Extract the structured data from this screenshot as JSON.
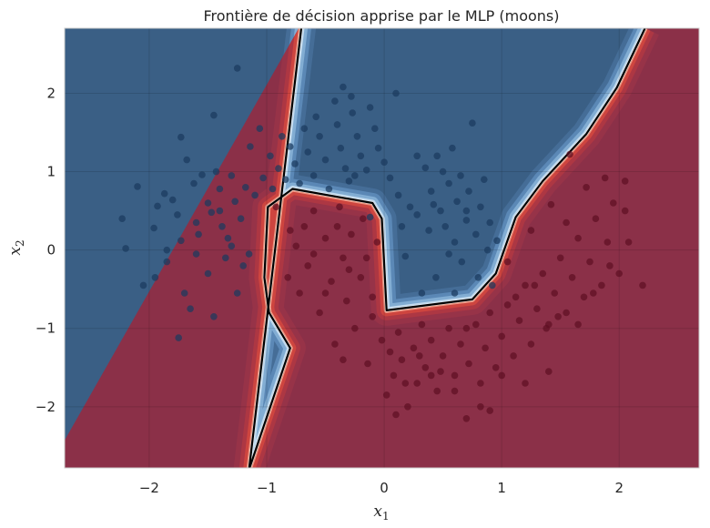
{
  "chart_data": {
    "type": "scatter",
    "title": "Frontière de décision apprise par le MLP (moons)",
    "xlabel": {
      "var": "x",
      "sub": "1"
    },
    "ylabel": {
      "var": "x",
      "sub": "2"
    },
    "xlim": [
      -2.72,
      2.68
    ],
    "ylim": [
      -2.78,
      2.83
    ],
    "xticks": [
      -2,
      -1,
      0,
      1,
      2
    ],
    "yticks": [
      -2,
      -1,
      0,
      1,
      2
    ],
    "grid": true,
    "colors": {
      "class0_region": "#3a5f85",
      "class1_region": "#8b3048",
      "class0_point": "#1b3a5e",
      "class1_point": "#5e0f22",
      "boundary": "#000000",
      "edge_blue": "#5aa1d6",
      "edge_red": "#cf3b3b"
    },
    "decision_boundary": [
      [
        -0.7,
        2.9
      ],
      [
        -1.15,
        -2.8
      ],
      [
        -0.8,
        -1.25
      ],
      [
        -0.98,
        -0.8
      ],
      [
        -1.02,
        -0.35
      ],
      [
        -0.99,
        0.55
      ],
      [
        -0.78,
        0.78
      ],
      [
        -0.1,
        0.6
      ],
      [
        -0.02,
        0.4
      ],
      [
        0.02,
        -0.77
      ],
      [
        0.75,
        -0.63
      ],
      [
        0.95,
        -0.3
      ],
      [
        1.12,
        0.42
      ],
      [
        1.35,
        0.88
      ],
      [
        1.72,
        1.48
      ],
      [
        1.98,
        2.07
      ],
      [
        2.22,
        2.83
      ]
    ],
    "series": [
      {
        "class": 0,
        "points": [
          [
            -2.1,
            0.81
          ],
          [
            -2.23,
            0.4
          ],
          [
            -1.96,
            0.28
          ],
          [
            -1.93,
            0.56
          ],
          [
            -1.87,
            0.72
          ],
          [
            -1.8,
            0.64
          ],
          [
            -1.76,
            0.45
          ],
          [
            -1.73,
            1.44
          ],
          [
            -1.73,
            0.12
          ],
          [
            -1.68,
            1.15
          ],
          [
            -1.62,
            0.85
          ],
          [
            -1.6,
            0.35
          ],
          [
            -1.58,
            0.2
          ],
          [
            -1.55,
            0.96
          ],
          [
            -1.5,
            0.6
          ],
          [
            -1.47,
            0.48
          ],
          [
            -1.43,
            1.0
          ],
          [
            -1.4,
            0.78
          ],
          [
            -1.38,
            0.3
          ],
          [
            -1.33,
            0.15
          ],
          [
            -1.3,
            0.95
          ],
          [
            -1.27,
            0.62
          ],
          [
            -1.22,
            0.4
          ],
          [
            -1.18,
            0.8
          ],
          [
            -1.14,
            1.32
          ],
          [
            -1.1,
            0.7
          ],
          [
            -1.06,
            1.55
          ],
          [
            -1.03,
            0.92
          ],
          [
            -0.97,
            1.2
          ],
          [
            -0.95,
            0.78
          ],
          [
            -0.9,
            1.04
          ],
          [
            -0.87,
            1.45
          ],
          [
            -0.84,
            0.9
          ],
          [
            -0.8,
            1.32
          ],
          [
            -0.76,
            1.1
          ],
          [
            -0.72,
            0.85
          ],
          [
            -0.68,
            1.55
          ],
          [
            -0.65,
            1.25
          ],
          [
            -0.6,
            0.95
          ],
          [
            -0.58,
            1.7
          ],
          [
            -0.55,
            1.45
          ],
          [
            -0.5,
            1.15
          ],
          [
            -0.47,
            0.78
          ],
          [
            -0.42,
            1.9
          ],
          [
            -0.4,
            1.6
          ],
          [
            -0.37,
            1.3
          ],
          [
            -0.33,
            1.04
          ],
          [
            -0.3,
            0.88
          ],
          [
            -0.27,
            1.75
          ],
          [
            -0.23,
            1.45
          ],
          [
            -0.2,
            1.2
          ],
          [
            -0.15,
            1.02
          ],
          [
            -0.12,
            1.82
          ],
          [
            -0.08,
            1.55
          ],
          [
            -0.05,
            1.3
          ],
          [
            0.0,
            1.12
          ],
          [
            0.05,
            0.92
          ],
          [
            0.1,
            2.0
          ],
          [
            0.12,
            0.7
          ],
          [
            -2.2,
            0.02
          ],
          [
            -1.95,
            -0.35
          ],
          [
            -1.85,
            -0.15
          ],
          [
            -1.7,
            -0.55
          ],
          [
            -1.45,
            -0.85
          ],
          [
            -1.25,
            -0.55
          ],
          [
            -1.2,
            -0.2
          ],
          [
            -1.3,
            0.05
          ],
          [
            -1.75,
            -1.12
          ],
          [
            -1.5,
            -0.3
          ],
          [
            -1.6,
            -0.05
          ],
          [
            -1.35,
            -0.1
          ],
          [
            -1.85,
            0.0
          ],
          [
            -2.05,
            -0.45
          ],
          [
            -1.65,
            -0.75
          ],
          [
            -1.4,
            0.5
          ],
          [
            -1.15,
            -0.05
          ],
          [
            -1.25,
            2.32
          ],
          [
            -0.35,
            2.08
          ],
          [
            -0.28,
            1.96
          ],
          [
            -1.45,
            1.72
          ],
          [
            -0.25,
            0.95
          ],
          [
            0.35,
            1.05
          ],
          [
            0.4,
            0.75
          ],
          [
            0.45,
            1.2
          ],
          [
            0.48,
            0.5
          ],
          [
            0.52,
            0.3
          ],
          [
            0.55,
            0.85
          ],
          [
            0.6,
            0.1
          ],
          [
            0.62,
            0.62
          ],
          [
            0.66,
            -0.15
          ],
          [
            0.7,
            0.38
          ],
          [
            0.72,
            0.75
          ],
          [
            0.78,
            0.2
          ],
          [
            0.8,
            -0.35
          ],
          [
            0.82,
            0.55
          ],
          [
            0.88,
            0.0
          ],
          [
            0.9,
            0.35
          ],
          [
            0.92,
            -0.45
          ],
          [
            0.96,
            0.12
          ],
          [
            0.75,
            1.62
          ],
          [
            0.58,
            1.3
          ],
          [
            0.44,
            -0.35
          ],
          [
            0.38,
            0.25
          ],
          [
            0.32,
            -0.55
          ],
          [
            0.28,
            0.45
          ],
          [
            0.22,
            0.55
          ],
          [
            0.18,
            -0.08
          ],
          [
            0.15,
            0.3
          ],
          [
            -0.12,
            0.42
          ],
          [
            0.55,
            -0.05
          ],
          [
            0.65,
            0.95
          ],
          [
            0.42,
            0.58
          ],
          [
            0.6,
            -0.55
          ],
          [
            0.85,
            0.9
          ],
          [
            0.28,
            1.2
          ],
          [
            0.5,
            1.0
          ],
          [
            0.7,
            0.5
          ]
        ]
      },
      {
        "class": 1,
        "points": [
          [
            -0.92,
            0.55
          ],
          [
            -0.75,
            0.05
          ],
          [
            -0.72,
            -0.55
          ],
          [
            -0.68,
            0.3
          ],
          [
            -0.65,
            -0.2
          ],
          [
            -0.6,
            0.5
          ],
          [
            -0.55,
            -0.8
          ],
          [
            -0.5,
            0.15
          ],
          [
            -0.45,
            -0.4
          ],
          [
            -0.42,
            -1.2
          ],
          [
            -0.38,
            0.55
          ],
          [
            -0.35,
            -0.1
          ],
          [
            -0.32,
            -0.65
          ],
          [
            -0.28,
            0.2
          ],
          [
            -0.25,
            -1.0
          ],
          [
            -0.2,
            -0.35
          ],
          [
            -0.18,
            0.4
          ],
          [
            -0.14,
            -1.45
          ],
          [
            -0.1,
            -0.6
          ],
          [
            -0.06,
            0.1
          ],
          [
            -0.02,
            -1.15
          ],
          [
            0.02,
            -1.85
          ],
          [
            0.05,
            -1.3
          ],
          [
            0.08,
            -1.6
          ],
          [
            0.12,
            -1.05
          ],
          [
            0.15,
            -1.4
          ],
          [
            0.2,
            -2.0
          ],
          [
            0.25,
            -1.25
          ],
          [
            0.28,
            -1.7
          ],
          [
            0.32,
            -0.95
          ],
          [
            0.35,
            -1.5
          ],
          [
            0.4,
            -1.15
          ],
          [
            0.45,
            -1.8
          ],
          [
            0.5,
            -1.35
          ],
          [
            0.55,
            -1.0
          ],
          [
            0.6,
            -1.6
          ],
          [
            0.65,
            -1.2
          ],
          [
            0.7,
            -2.15
          ],
          [
            0.72,
            -1.45
          ],
          [
            0.78,
            -0.95
          ],
          [
            0.82,
            -1.7
          ],
          [
            0.86,
            -1.25
          ],
          [
            0.9,
            -0.8
          ],
          [
            0.95,
            -1.5
          ],
          [
            1.0,
            -1.1
          ],
          [
            1.05,
            -0.7
          ],
          [
            1.1,
            -1.35
          ],
          [
            1.15,
            -0.9
          ],
          [
            1.2,
            -0.45
          ],
          [
            1.25,
            -1.2
          ],
          [
            1.3,
            -0.75
          ],
          [
            1.35,
            -0.3
          ],
          [
            1.4,
            -0.95
          ],
          [
            1.45,
            -0.55
          ],
          [
            1.5,
            -0.1
          ],
          [
            1.55,
            -0.8
          ],
          [
            1.6,
            -0.35
          ],
          [
            1.65,
            0.15
          ],
          [
            1.7,
            -0.6
          ],
          [
            1.75,
            -0.15
          ],
          [
            1.8,
            0.4
          ],
          [
            1.85,
            -0.45
          ],
          [
            1.9,
            0.1
          ],
          [
            1.95,
            0.6
          ],
          [
            2.0,
            -0.3
          ],
          [
            2.05,
            0.5
          ],
          [
            2.2,
            -0.45
          ],
          [
            1.58,
            1.22
          ],
          [
            1.88,
            0.92
          ],
          [
            2.05,
            0.88
          ],
          [
            1.42,
            0.58
          ],
          [
            1.25,
            0.25
          ],
          [
            1.05,
            -0.15
          ],
          [
            1.72,
            0.8
          ],
          [
            1.55,
            0.35
          ],
          [
            -0.6,
            -0.05
          ],
          [
            -0.8,
            0.25
          ],
          [
            -0.82,
            -0.35
          ],
          [
            -0.3,
            -0.25
          ],
          [
            -0.15,
            -0.1
          ],
          [
            -0.4,
            0.3
          ],
          [
            -0.5,
            -0.55
          ],
          [
            -0.35,
            -1.4
          ],
          [
            0.6,
            -1.8
          ],
          [
            0.48,
            -1.55
          ],
          [
            0.3,
            -1.35
          ],
          [
            1.0,
            -1.6
          ],
          [
            1.2,
            -1.7
          ],
          [
            1.4,
            -1.55
          ],
          [
            0.9,
            -2.05
          ],
          [
            0.1,
            -2.1
          ],
          [
            -0.1,
            -0.85
          ],
          [
            0.82,
            -2.0
          ],
          [
            1.65,
            -0.95
          ],
          [
            1.78,
            -0.55
          ],
          [
            1.92,
            -0.2
          ],
          [
            2.08,
            0.1
          ],
          [
            1.48,
            -0.85
          ],
          [
            1.38,
            -1.0
          ],
          [
            1.12,
            -0.6
          ],
          [
            1.28,
            -0.45
          ],
          [
            0.7,
            -1.0
          ],
          [
            0.4,
            -1.6
          ],
          [
            0.18,
            -1.7
          ]
        ]
      }
    ]
  }
}
